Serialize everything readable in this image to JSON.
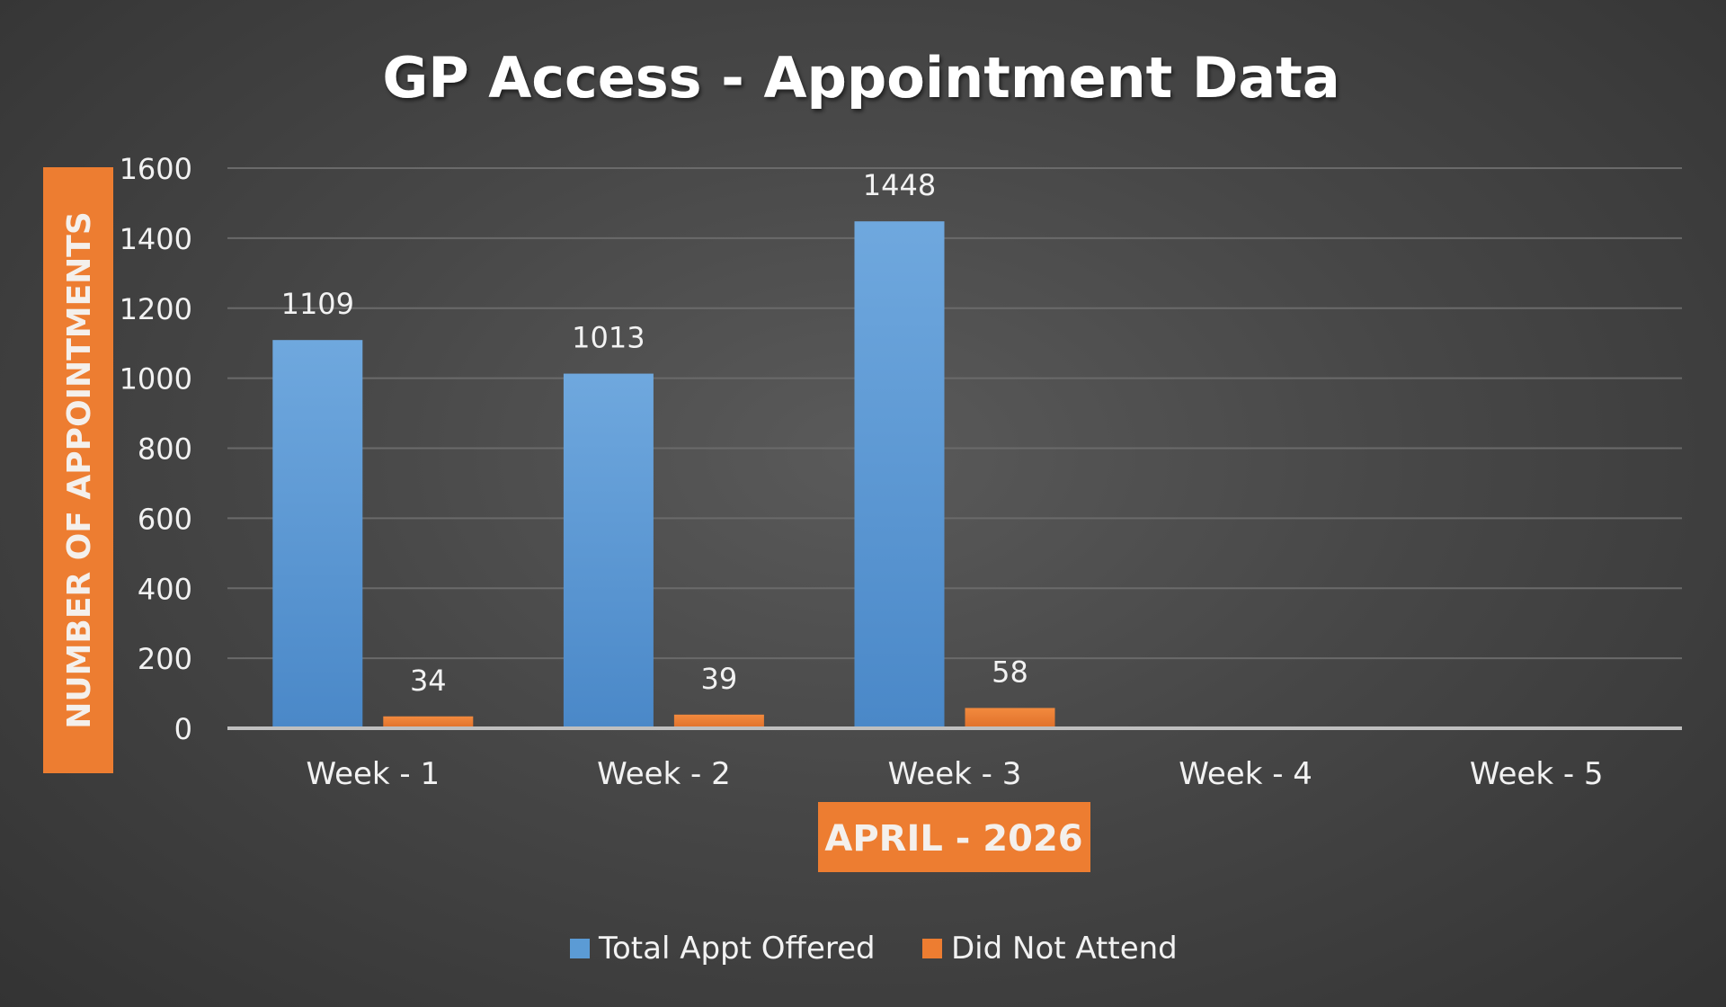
{
  "chart_data": {
    "type": "bar",
    "title": "GP Access - Appointment Data",
    "ylabel": "NUMBER OF APPOINTMENTS",
    "xlabel": "APRIL - 2026",
    "categories": [
      "Week - 1",
      "Week - 2",
      "Week - 3",
      "Week - 4",
      "Week - 5"
    ],
    "series": [
      {
        "name": "Total Appt Offered",
        "values": [
          1109,
          1013,
          1448,
          null,
          null
        ],
        "color": "#5b9bd5"
      },
      {
        "name": "Did Not Attend",
        "values": [
          34,
          39,
          58,
          null,
          null
        ],
        "color": "#ed7d31"
      }
    ],
    "ylim": [
      0,
      1600
    ],
    "yticks": [
      0,
      200,
      400,
      600,
      800,
      1000,
      1200,
      1400,
      1600
    ],
    "grid": true,
    "legend_position": "bottom",
    "data_labels": true,
    "colors": {
      "axis_label_bg": "#ed7d31",
      "text": "#ffffff",
      "grid": "#6a6a6a",
      "axis_line": "#bfbfbf"
    }
  }
}
